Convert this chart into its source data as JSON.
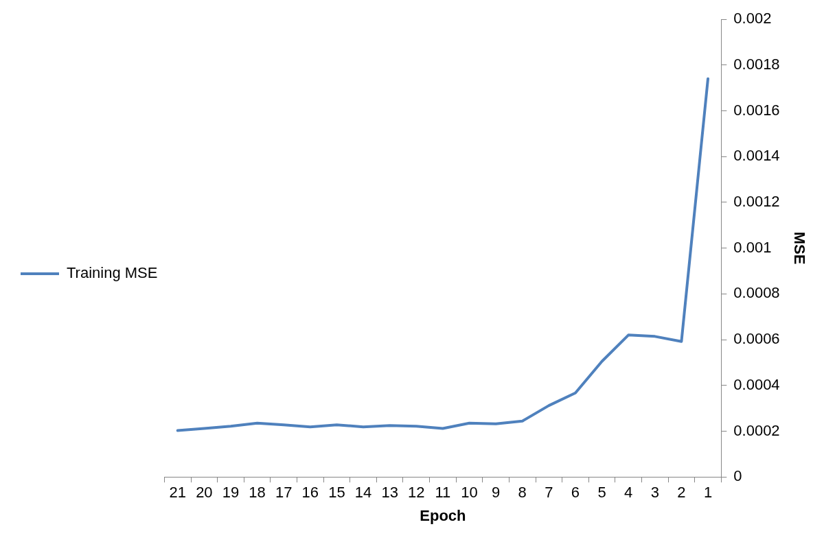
{
  "chart_data": {
    "type": "line",
    "xlabel": "Epoch",
    "ylabel": "MSE",
    "categories": [
      "21",
      "20",
      "19",
      "18",
      "17",
      "16",
      "15",
      "14",
      "13",
      "12",
      "11",
      "10",
      "9",
      "8",
      "7",
      "6",
      "5",
      "4",
      "3",
      "2",
      "1"
    ],
    "series": [
      {
        "name": "Training MSE",
        "color": "#4f81bd",
        "values": [
          0.000203,
          0.000212,
          0.000222,
          0.000235,
          0.000228,
          0.000219,
          0.000228,
          0.000219,
          0.000225,
          0.000222,
          0.000212,
          0.000235,
          0.000232,
          0.000244,
          0.000312,
          0.000367,
          0.000505,
          0.00062,
          0.000614,
          0.000592,
          0.00174
        ]
      }
    ],
    "ylim": [
      0,
      0.002
    ],
    "yticks": [
      0,
      0.0002,
      0.0004,
      0.0006,
      0.0008,
      0.001,
      0.0012,
      0.0014,
      0.0016,
      0.0018,
      0.002
    ],
    "grid": false,
    "legend": "left",
    "marker": "none",
    "line_style": "solid"
  }
}
